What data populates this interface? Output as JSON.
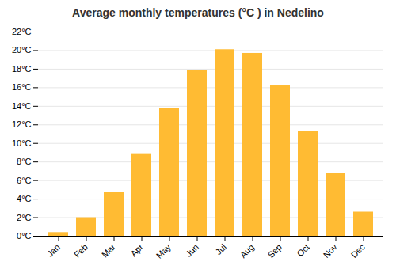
{
  "chart_data": {
    "type": "bar",
    "title": "Average monthly temperatures (°C ) in Nedelino",
    "categories": [
      "Jan",
      "Feb",
      "Mar",
      "Apr",
      "May",
      "Jun",
      "Jul",
      "Aug",
      "Sep",
      "Oct",
      "Nov",
      "Dec"
    ],
    "values": [
      0.4,
      2.0,
      4.7,
      8.9,
      13.8,
      17.9,
      20.1,
      19.7,
      16.2,
      11.3,
      6.8,
      2.6
    ],
    "color": "#FFBB33",
    "ylim": [
      0,
      22
    ],
    "yticks": [
      {
        "value": 0,
        "label": "0°C"
      },
      {
        "value": 2,
        "label": "2°C"
      },
      {
        "value": 4,
        "label": "4°C"
      },
      {
        "value": 6,
        "label": "6°C"
      },
      {
        "value": 8,
        "label": "8°C"
      },
      {
        "value": 10,
        "label": "10°C"
      },
      {
        "value": 12,
        "label": "12°C"
      },
      {
        "value": 14,
        "label": "14°C"
      },
      {
        "value": 16,
        "label": "16°C"
      },
      {
        "value": 18,
        "label": "18°C"
      },
      {
        "value": 20,
        "label": "20°C"
      },
      {
        "value": 22,
        "label": "22°C"
      }
    ],
    "grid": true
  }
}
